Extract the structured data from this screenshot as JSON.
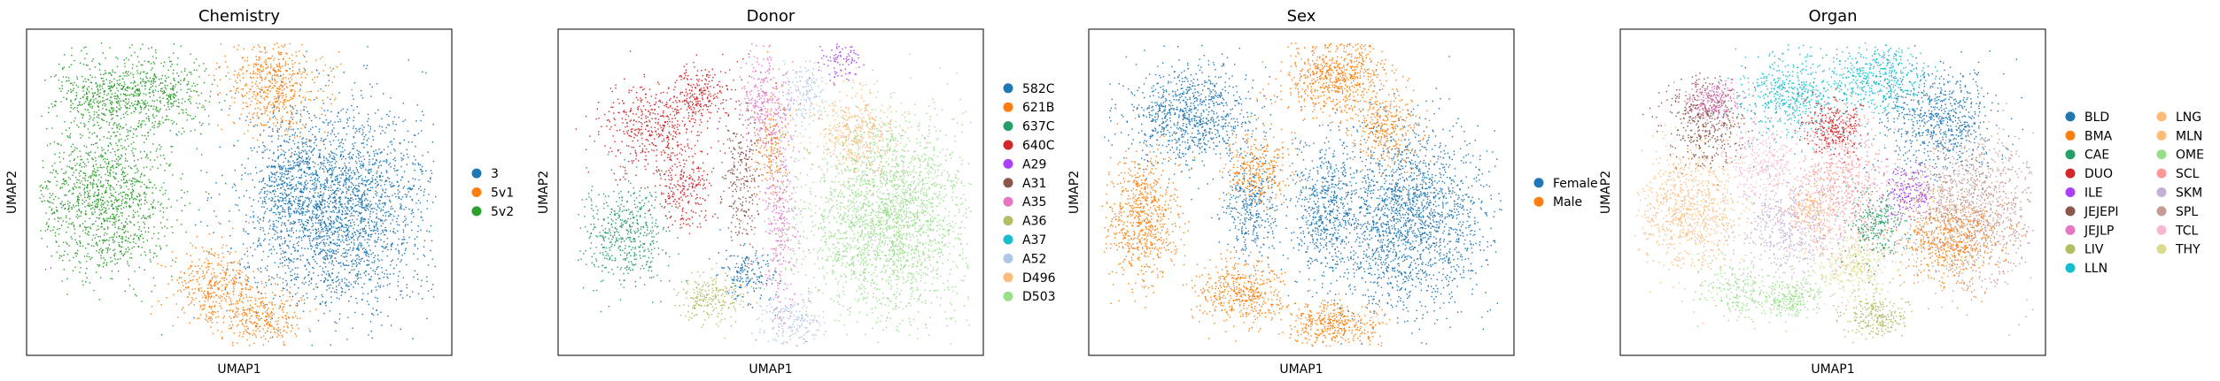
{
  "chart_data": [
    {
      "type": "scatter",
      "title": "Chemistry",
      "xlabel": "UMAP1",
      "ylabel": "UMAP2",
      "grid": false,
      "legend_placement": "right",
      "legend_columns": 1,
      "categories": [
        "3",
        "5v1",
        "5v2"
      ],
      "colors": [
        "#1f77b4",
        "#ff7f0e",
        "#2ca02c"
      ]
    },
    {
      "type": "scatter",
      "title": "Donor",
      "xlabel": "UMAP1",
      "ylabel": "UMAP2",
      "grid": false,
      "legend_placement": "right",
      "legend_columns": 1,
      "categories": [
        "582C",
        "621B",
        "637C",
        "640C",
        "A29",
        "A31",
        "A35",
        "A36",
        "A37",
        "A52",
        "D496",
        "D503"
      ],
      "colors": [
        "#1f77b4",
        "#ff7f0e",
        "#279e68",
        "#d62728",
        "#aa40fc",
        "#8c564b",
        "#e377c2",
        "#b5bd61",
        "#17becf",
        "#aec7e8",
        "#ffbb78",
        "#98df8a"
      ]
    },
    {
      "type": "scatter",
      "title": "Sex",
      "xlabel": "UMAP1",
      "ylabel": "UMAP2",
      "grid": false,
      "legend_placement": "right",
      "legend_columns": 1,
      "categories": [
        "Female",
        "Male"
      ],
      "colors": [
        "#1f77b4",
        "#ff7f0e"
      ]
    },
    {
      "type": "scatter",
      "title": "Organ",
      "xlabel": "UMAP1",
      "ylabel": "UMAP2",
      "grid": false,
      "legend_placement": "right",
      "legend_columns": 2,
      "categories": [
        "BLD",
        "BMA",
        "CAE",
        "DUO",
        "ILE",
        "JEJEPI",
        "JEJLP",
        "LIV",
        "LLN",
        "LNG",
        "MLN",
        "OME",
        "SCL",
        "SKM",
        "SPL",
        "TCL",
        "THY"
      ],
      "colors": [
        "#1f77b4",
        "#ff7f0e",
        "#279e68",
        "#d62728",
        "#aa40fc",
        "#8c564b",
        "#e377c2",
        "#b5bd61",
        "#17becf",
        "#ffbb78",
        "#ffbb78",
        "#98df8a",
        "#ff9896",
        "#c5b0d5",
        "#c49c94",
        "#f7b6d2",
        "#dbdb8d"
      ]
    }
  ]
}
